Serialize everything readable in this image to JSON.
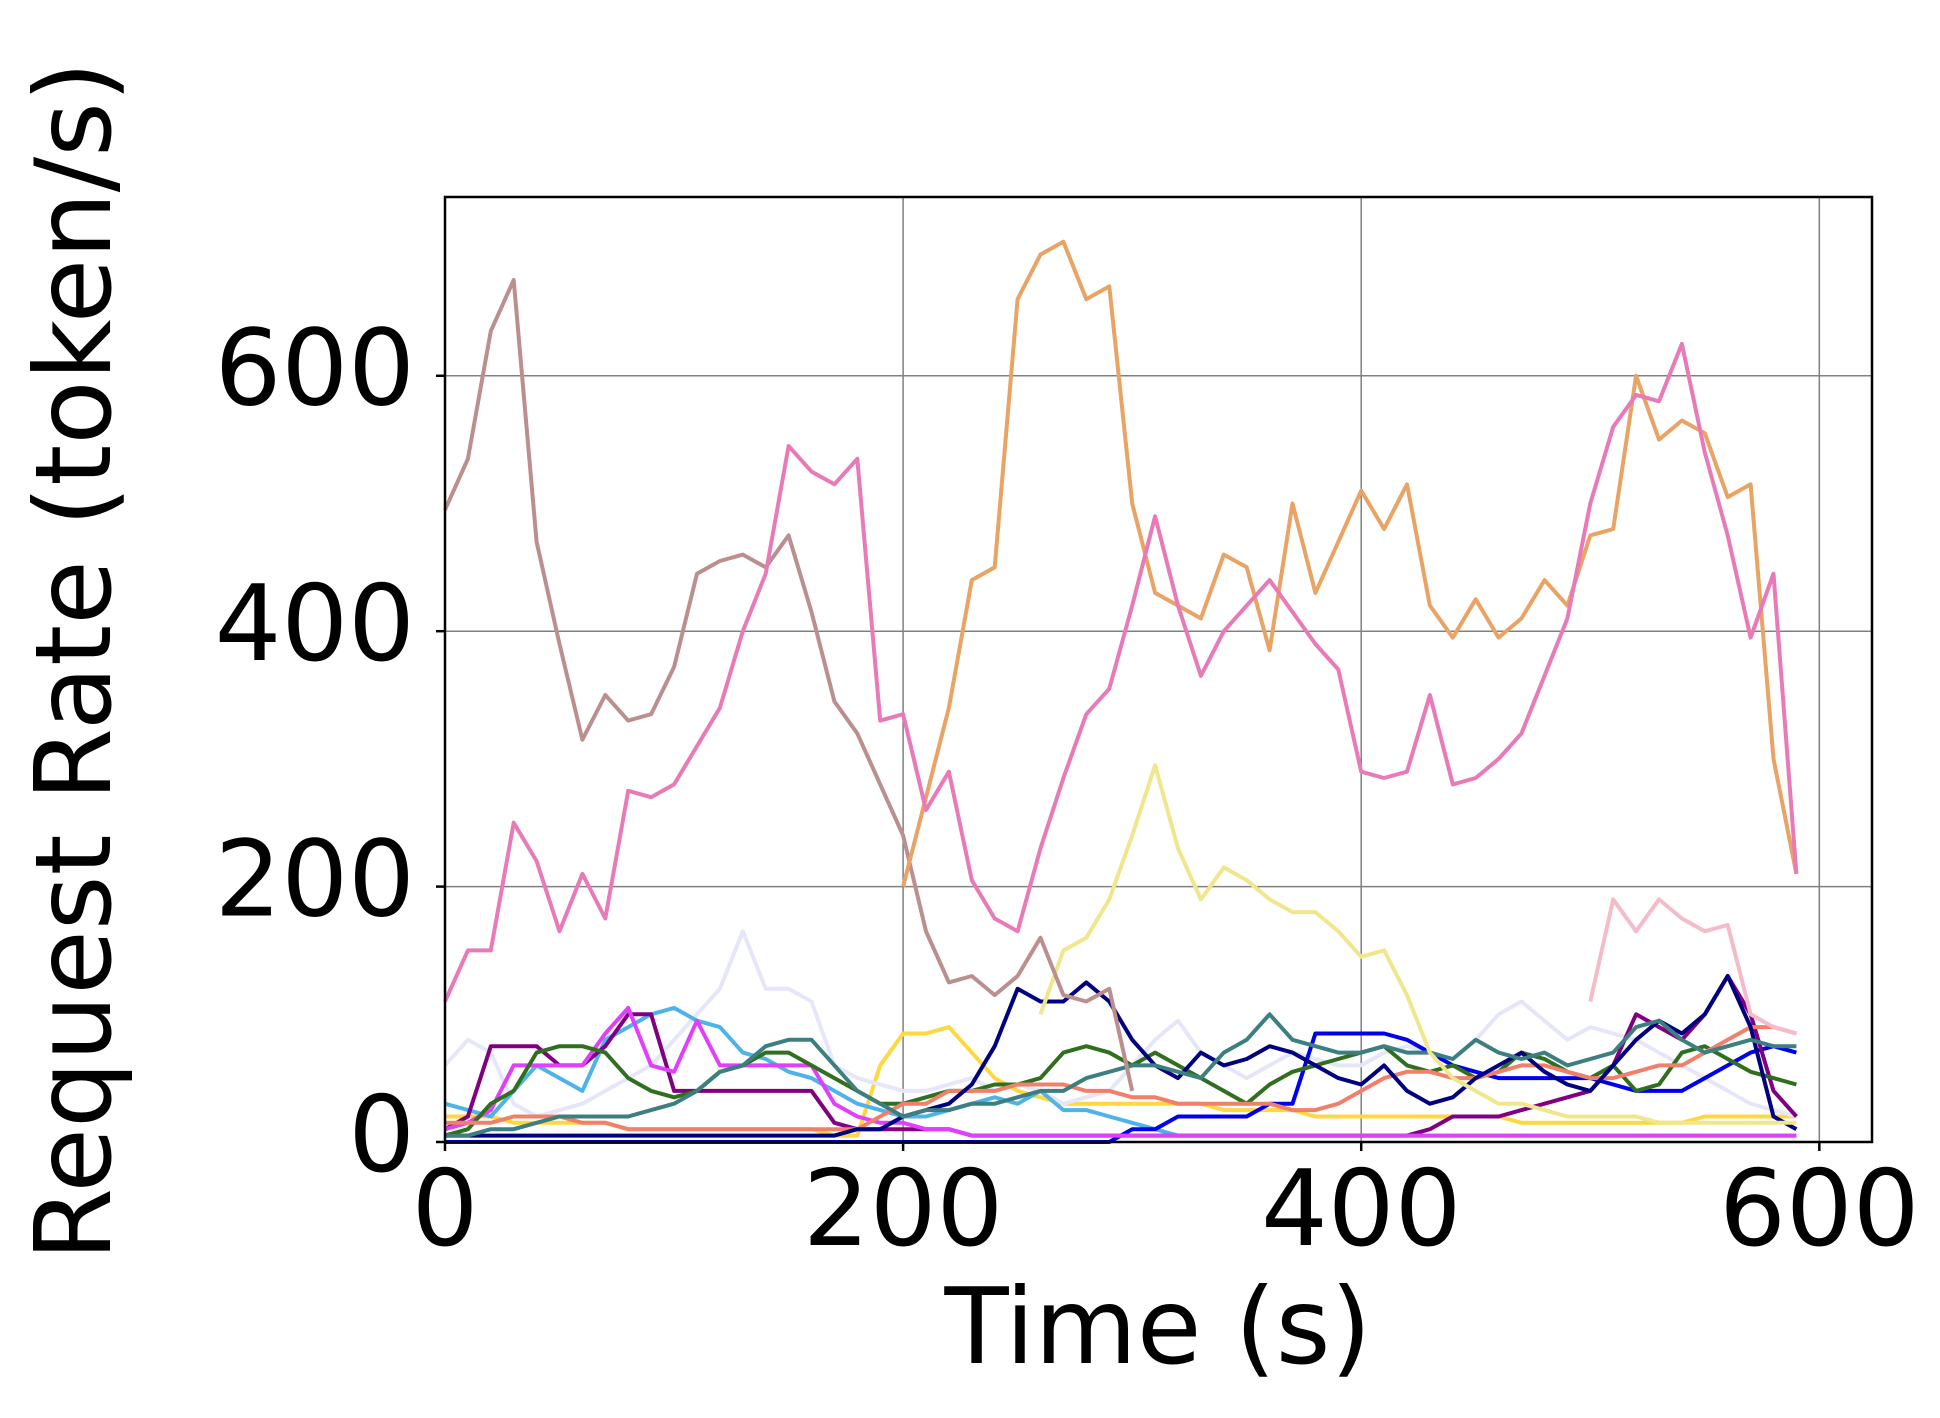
{
  "chart_data": {
    "type": "line",
    "xlabel": "Time (s)",
    "ylabel": "Request Rate (token/s)",
    "x": [
      0,
      10,
      20,
      30,
      40,
      50,
      60,
      70,
      80,
      90,
      100,
      110,
      120,
      130,
      140,
      150,
      160,
      170,
      180,
      190,
      200,
      210,
      220,
      230,
      240,
      250,
      260,
      270,
      280,
      290,
      300,
      310,
      320,
      330,
      340,
      350,
      360,
      370,
      380,
      390,
      400,
      410,
      420,
      430,
      440,
      450,
      460,
      470,
      480,
      490,
      500,
      510,
      520,
      530,
      540,
      550,
      560,
      570,
      580,
      590
    ],
    "xlim": [
      0,
      623
    ],
    "ylim": [
      0,
      740
    ],
    "xticks": [
      0,
      200,
      400,
      600
    ],
    "yticks": [
      0,
      200,
      400,
      600
    ],
    "grid": true,
    "series": [
      {
        "color": "#ffd740",
        "values": [
          20,
          20,
          20,
          15,
          15,
          15,
          15,
          15,
          10,
          10,
          10,
          10,
          10,
          10,
          10,
          10,
          10,
          5,
          5,
          60,
          85,
          85,
          90,
          70,
          50,
          40,
          35,
          30,
          30,
          30,
          30,
          30,
          30,
          30,
          25,
          25,
          25,
          25,
          20,
          20,
          20,
          20,
          20,
          20,
          20,
          20,
          20,
          15,
          15,
          15,
          15,
          15,
          15,
          15,
          15,
          20,
          20,
          20,
          20,
          20
        ]
      },
      {
        "color": "#e6e6fa",
        "values": [
          60,
          80,
          70,
          30,
          20,
          25,
          30,
          40,
          50,
          60,
          80,
          100,
          120,
          165,
          120,
          120,
          110,
          60,
          50,
          45,
          40,
          40,
          45,
          50,
          40,
          45,
          40,
          30,
          35,
          40,
          60,
          80,
          95,
          70,
          60,
          50,
          60,
          70,
          65,
          60,
          60,
          70,
          75,
          70,
          65,
          80,
          100,
          110,
          95,
          80,
          90,
          85,
          80,
          70,
          60,
          50,
          40,
          30,
          25,
          20
        ]
      },
      {
        "color": "#4fb3ea",
        "values": [
          30,
          25,
          20,
          40,
          60,
          50,
          40,
          80,
          90,
          100,
          105,
          95,
          90,
          70,
          65,
          55,
          50,
          40,
          30,
          25,
          20,
          20,
          25,
          30,
          35,
          30,
          40,
          25,
          25,
          20,
          15,
          10,
          5,
          5,
          5,
          5,
          5,
          5,
          5,
          5,
          5,
          5,
          5,
          5,
          5,
          5,
          5,
          5,
          5,
          5,
          5,
          5,
          5,
          5,
          5,
          5,
          5,
          5,
          5,
          5
        ]
      },
      {
        "color": "#0000ee",
        "values": [
          0,
          0,
          0,
          0,
          0,
          0,
          0,
          0,
          0,
          0,
          0,
          0,
          0,
          0,
          0,
          0,
          0,
          0,
          0,
          0,
          0,
          0,
          0,
          0,
          0,
          0,
          0,
          0,
          0,
          0,
          10,
          10,
          20,
          20,
          20,
          20,
          30,
          30,
          85,
          85,
          85,
          85,
          80,
          70,
          60,
          55,
          50,
          50,
          50,
          50,
          50,
          45,
          40,
          40,
          40,
          50,
          60,
          70,
          75,
          70
        ]
      },
      {
        "color": "#800080",
        "values": [
          10,
          20,
          75,
          75,
          75,
          60,
          60,
          75,
          100,
          100,
          40,
          40,
          40,
          40,
          40,
          40,
          40,
          15,
          10,
          10,
          10,
          10,
          10,
          5,
          5,
          5,
          5,
          5,
          5,
          5,
          5,
          5,
          5,
          5,
          5,
          5,
          5,
          5,
          5,
          5,
          5,
          5,
          5,
          10,
          20,
          20,
          20,
          25,
          30,
          35,
          40,
          60,
          100,
          90,
          80,
          100,
          130,
          100,
          40,
          20
        ]
      },
      {
        "color": "#e040fb",
        "values": [
          10,
          15,
          25,
          60,
          60,
          60,
          60,
          85,
          105,
          60,
          55,
          95,
          60,
          60,
          60,
          60,
          60,
          30,
          20,
          15,
          15,
          10,
          10,
          5,
          5,
          5,
          5,
          5,
          5,
          5,
          5,
          5,
          5,
          5,
          5,
          5,
          5,
          5,
          5,
          5,
          5,
          5,
          5,
          5,
          5,
          5,
          5,
          5,
          5,
          5,
          5,
          5,
          5,
          5,
          5,
          5,
          5,
          5,
          5,
          5
        ]
      },
      {
        "color": "#2f6f1f",
        "values": [
          5,
          10,
          30,
          40,
          70,
          75,
          75,
          70,
          50,
          40,
          35,
          40,
          55,
          60,
          70,
          70,
          60,
          50,
          40,
          30,
          30,
          35,
          40,
          40,
          45,
          45,
          50,
          70,
          75,
          70,
          60,
          70,
          60,
          50,
          40,
          30,
          45,
          55,
          60,
          65,
          70,
          75,
          60,
          55,
          60,
          50,
          55,
          70,
          65,
          55,
          50,
          60,
          40,
          45,
          70,
          75,
          65,
          55,
          50,
          45
        ]
      },
      {
        "color": "#f0806a",
        "values": [
          15,
          15,
          15,
          20,
          20,
          20,
          15,
          15,
          10,
          10,
          10,
          10,
          10,
          10,
          10,
          10,
          10,
          10,
          10,
          20,
          30,
          30,
          40,
          40,
          40,
          45,
          45,
          45,
          40,
          40,
          35,
          35,
          30,
          30,
          30,
          30,
          30,
          25,
          25,
          30,
          40,
          50,
          55,
          55,
          50,
          50,
          55,
          60,
          60,
          55,
          50,
          50,
          55,
          60,
          60,
          70,
          80,
          90,
          90,
          85
        ]
      },
      {
        "color": "#000080",
        "values": [
          5,
          5,
          5,
          5,
          5,
          5,
          5,
          5,
          5,
          5,
          5,
          5,
          5,
          5,
          5,
          5,
          5,
          5,
          10,
          10,
          20,
          25,
          30,
          45,
          75,
          120,
          110,
          110,
          125,
          110,
          80,
          60,
          50,
          70,
          60,
          65,
          75,
          70,
          60,
          50,
          45,
          60,
          40,
          30,
          35,
          50,
          60,
          70,
          55,
          45,
          40,
          60,
          80,
          95,
          85,
          100,
          130,
          90,
          20,
          10
        ]
      },
      {
        "color": "#3d7f80",
        "values": [
          5,
          5,
          10,
          10,
          15,
          20,
          20,
          20,
          20,
          25,
          30,
          40,
          55,
          60,
          75,
          80,
          80,
          60,
          40,
          30,
          20,
          25,
          25,
          30,
          30,
          35,
          40,
          40,
          50,
          55,
          60,
          60,
          55,
          50,
          70,
          80,
          100,
          80,
          75,
          70,
          70,
          75,
          70,
          70,
          65,
          80,
          70,
          65,
          70,
          60,
          65,
          70,
          90,
          95,
          80,
          70,
          75,
          80,
          75,
          75
        ]
      },
      {
        "color": "#f0e68c",
        "values": [
          null,
          null,
          null,
          null,
          null,
          null,
          null,
          null,
          null,
          null,
          null,
          null,
          null,
          null,
          null,
          null,
          null,
          null,
          null,
          null,
          null,
          null,
          null,
          null,
          null,
          null,
          100,
          150,
          160,
          190,
          240,
          295,
          230,
          190,
          215,
          205,
          190,
          180,
          180,
          165,
          145,
          150,
          115,
          70,
          50,
          40,
          30,
          30,
          25,
          20,
          20,
          20,
          20,
          15,
          15,
          15,
          15,
          15,
          15,
          15
        ]
      },
      {
        "color": "#f4bcc8",
        "values": [
          null,
          null,
          null,
          null,
          null,
          null,
          null,
          null,
          null,
          null,
          null,
          null,
          null,
          null,
          null,
          null,
          null,
          null,
          null,
          null,
          null,
          null,
          null,
          null,
          null,
          null,
          null,
          null,
          null,
          null,
          null,
          null,
          null,
          null,
          null,
          null,
          null,
          null,
          null,
          null,
          null,
          null,
          null,
          null,
          null,
          null,
          null,
          null,
          null,
          null,
          110,
          190,
          165,
          190,
          175,
          165,
          170,
          100,
          90,
          85
        ]
      },
      {
        "color": "#bc8f8f",
        "values": [
          495,
          535,
          635,
          675,
          470,
          390,
          315,
          350,
          330,
          335,
          372,
          445,
          455,
          460,
          450,
          475,
          415,
          345,
          320,
          280,
          240,
          165,
          125,
          130,
          115,
          130,
          160,
          115,
          110,
          120,
          40,
          null,
          null,
          null,
          null,
          null,
          null,
          null,
          null,
          null,
          null,
          null,
          null,
          null,
          null,
          null,
          null,
          null,
          null,
          null,
          null,
          null,
          null,
          null,
          null,
          null,
          null,
          null,
          null,
          null
        ]
      },
      {
        "color": "#e8a365",
        "values": [
          null,
          null,
          null,
          null,
          null,
          null,
          null,
          null,
          null,
          null,
          null,
          null,
          null,
          null,
          null,
          null,
          null,
          null,
          null,
          null,
          200,
          270,
          340,
          440,
          450,
          660,
          695,
          705,
          660,
          670,
          500,
          430,
          420,
          410,
          460,
          450,
          385,
          500,
          430,
          470,
          510,
          480,
          515,
          420,
          395,
          425,
          395,
          410,
          440,
          420,
          475,
          480,
          600,
          550,
          565,
          555,
          505,
          515,
          300,
          210
        ]
      },
      {
        "color": "#e87ab8",
        "values": [
          110,
          150,
          150,
          250,
          220,
          165,
          210,
          175,
          275,
          270,
          280,
          310,
          340,
          400,
          445,
          545,
          525,
          515,
          535,
          330,
          335,
          260,
          290,
          205,
          175,
          165,
          230,
          285,
          335,
          355,
          420,
          490,
          420,
          365,
          400,
          420,
          440,
          415,
          390,
          370,
          290,
          285,
          290,
          350,
          280,
          285,
          300,
          320,
          365,
          410,
          500,
          560,
          585,
          580,
          625,
          540,
          475,
          395,
          445,
          210
        ]
      }
    ]
  }
}
